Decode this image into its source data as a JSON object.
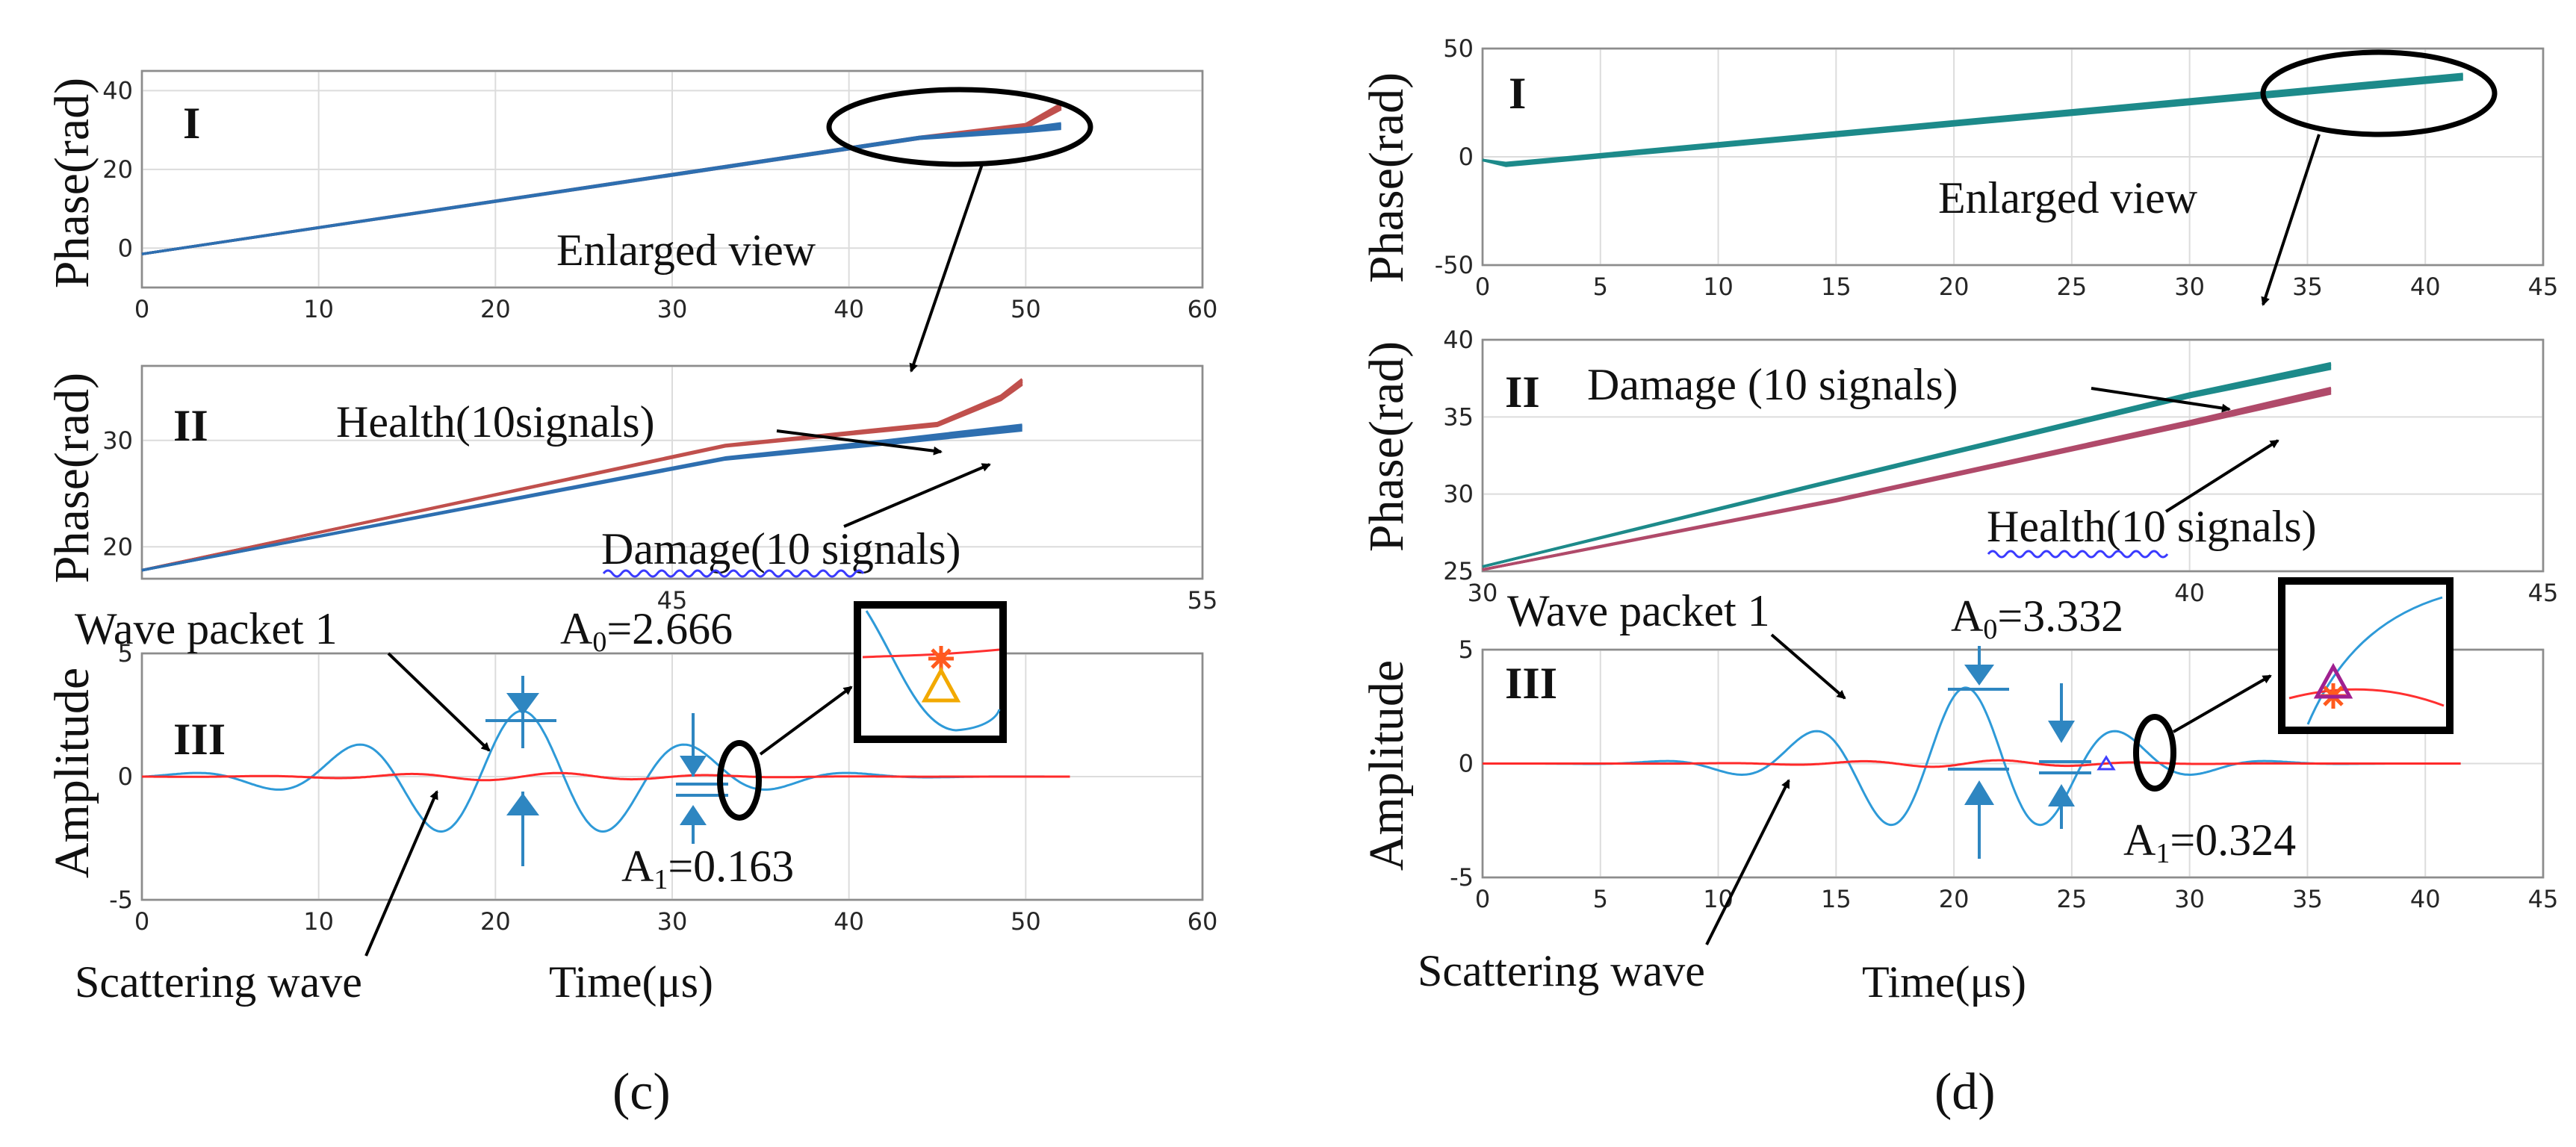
{
  "chart_data": [
    {
      "id": "c",
      "panel_label": "(c)",
      "subplots": [
        {
          "roman": "I",
          "type": "line",
          "ylabel": "Phase(rad)",
          "xlim": [
            0,
            60
          ],
          "ylim": [
            -10,
            45
          ],
          "xticks": [
            0,
            10,
            20,
            30,
            40,
            50,
            60
          ],
          "yticks": [
            0,
            20,
            40
          ],
          "grid": true,
          "series": [
            {
              "name": "Health",
              "color": "#c0504d",
              "points": [
                [
                  0,
                  -1.5
                ],
                [
                  44,
                  28
                ],
                [
                  50,
                  31
                ],
                [
                  52,
                  36
                ]
              ]
            },
            {
              "name": "Damage",
              "color": "#2e6fb0",
              "points": [
                [
                  0,
                  -1.5
                ],
                [
                  44,
                  28
                ],
                [
                  50,
                  30
                ],
                [
                  52,
                  31
                ]
              ]
            }
          ],
          "annotations": {
            "enlarged_view": "Enlarged view"
          }
        },
        {
          "roman": "II",
          "type": "line",
          "ylabel": "Phase(rad)",
          "xlim": [
            35,
            55
          ],
          "ylim": [
            17,
            37
          ],
          "xticks": [
            45,
            55
          ],
          "xtick_labels": [
            "45",
            "55"
          ],
          "yticks": [
            20,
            30
          ],
          "grid": true,
          "series": [
            {
              "name": "Health(10signals)",
              "color": "#c0504d",
              "points": [
                [
                  35,
                  17.8
                ],
                [
                  46,
                  29.5
                ],
                [
                  50,
                  31.5
                ],
                [
                  51.2,
                  34
                ],
                [
                  51.6,
                  35.5
                ]
              ]
            },
            {
              "name": "Damage(10 signals)",
              "color": "#2e6fb0",
              "points": [
                [
                  35,
                  17.8
                ],
                [
                  46,
                  28.3
                ],
                [
                  49,
                  29.8
                ],
                [
                  51.6,
                  31.2
                ]
              ]
            }
          ],
          "annotations": {
            "health": "Health(10signals)",
            "damage": "Damage(10 signals)"
          }
        },
        {
          "roman": "III",
          "type": "line",
          "ylabel": "Amplitude",
          "xlabel": "Time(μs)",
          "xlim": [
            0,
            60
          ],
          "ylim": [
            -5,
            5
          ],
          "xticks": [
            0,
            10,
            20,
            30,
            40,
            50,
            60
          ],
          "yticks": [
            -5,
            0,
            5
          ],
          "grid": true,
          "wave": {
            "center": 21.5,
            "period": 9.5,
            "sigma": 11,
            "amp": 2.666,
            "end": 52.5
          },
          "annotations": {
            "wave_packet": "Wave packet 1",
            "a0": "A0=2.666",
            "a1": "A1=0.163",
            "scattering": "Scattering wave",
            "time": "Time(μs)"
          }
        }
      ]
    },
    {
      "id": "d",
      "panel_label": "(d)",
      "subplots": [
        {
          "roman": "I",
          "type": "line",
          "ylabel": "Phase(rad)",
          "xlim": [
            0,
            45
          ],
          "ylim": [
            -50,
            50
          ],
          "xticks": [
            0,
            5,
            10,
            15,
            20,
            25,
            30,
            35,
            40,
            45
          ],
          "yticks": [
            -50,
            0,
            50
          ],
          "grid": true,
          "series": [
            {
              "name": "Damage",
              "color": "#1d8a8a",
              "points": [
                [
                  0,
                  -1.5
                ],
                [
                  1,
                  -3.5
                ],
                [
                  41.6,
                  37
                ]
              ]
            }
          ],
          "annotations": {
            "enlarged_view": "Enlarged view"
          }
        },
        {
          "roman": "II",
          "type": "line",
          "ylabel": "Phase(rad)",
          "xlim": [
            30,
            45
          ],
          "ylim": [
            25,
            40
          ],
          "xticks": [
            30,
            40,
            45
          ],
          "xtick_labels": [
            "30",
            "40",
            "45"
          ],
          "yticks": [
            25,
            30,
            35,
            40
          ],
          "grid": true,
          "series": [
            {
              "name": "Damage (10 signals)",
              "color": "#1d8a8a",
              "points": [
                [
                  30,
                  25.3
                ],
                [
                  35,
                  30.9
                ],
                [
                  40,
                  36.4
                ],
                [
                  42,
                  38.3
                ]
              ]
            },
            {
              "name": "Health(10 signals)",
              "color": "#b04a6a",
              "points": [
                [
                  30,
                  25.1
                ],
                [
                  35,
                  29.6
                ],
                [
                  40,
                  34.6
                ],
                [
                  42,
                  36.7
                ]
              ]
            }
          ],
          "annotations": {
            "damage": "Damage (10 signals)",
            "health": "Health(10 signals)"
          }
        },
        {
          "roman": "III",
          "type": "line",
          "ylabel": "Amplitude",
          "xlabel": "Time(μs)",
          "xlim": [
            0,
            45
          ],
          "ylim": [
            -5,
            5
          ],
          "xticks": [
            0,
            5,
            10,
            15,
            20,
            25,
            30,
            35,
            40,
            45
          ],
          "yticks": [
            -5,
            0,
            5
          ],
          "grid": true,
          "wave": {
            "center": 20.5,
            "period": 6.6,
            "sigma": 7,
            "amp": 3.332,
            "end": 41.5
          },
          "annotations": {
            "wave_packet": "Wave packet 1",
            "a0": "A0=3.332",
            "a1": "A1=0.324",
            "scattering": "Scattering wave",
            "time": "Time(μs)"
          }
        }
      ]
    }
  ]
}
